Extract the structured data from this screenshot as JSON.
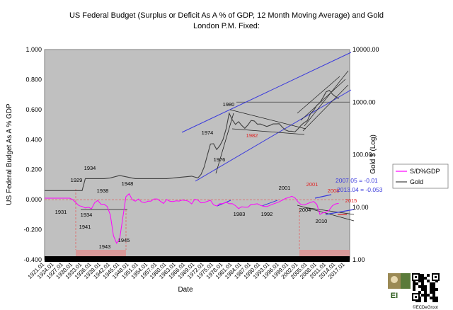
{
  "chart_data": {
    "type": "line",
    "title_line1": "US Federal Budget (Surplus or Deficit As A % of GDP, 12 Month Moving Average) and Gold",
    "title_line2": "London P.M. Fixed:",
    "xlabel": "Date",
    "ylabel_left": "US Federal Budget As A % GDP",
    "ylabel_right": "Gold $ (Log)",
    "y_left_ticks": [
      "1.000",
      "0.800",
      "0.600",
      "0.400",
      "0.200",
      "0.000",
      "-0.200",
      "-0.400"
    ],
    "y_left_range": [
      -0.4,
      1.0
    ],
    "y_right_ticks": [
      "10000.00",
      "1000.00",
      "100.00",
      "10.00",
      "1.00"
    ],
    "y_right_range": [
      1,
      10000
    ],
    "x_tick_labels": [
      "1921.01",
      "1924.01",
      "1927.01",
      "1930.01",
      "1933.01",
      "1936.01",
      "1939.01",
      "1942.01",
      "1945.01",
      "1948.01",
      "1951.01",
      "1954.01",
      "1957.01",
      "1960.01",
      "1963.01",
      "1966.01",
      "1969.01",
      "1972.01",
      "1975.01",
      "1978.01",
      "1981.01",
      "1984.01",
      "1987.01",
      "1990.01",
      "1993.01",
      "1996.01",
      "1999.01",
      "2002.01",
      "2005.01",
      "2008.01",
      "2011.01",
      "2014.01",
      "2017.01"
    ],
    "legend": [
      "S/D%GDP",
      "Gold"
    ],
    "series": [
      {
        "name": "S/D%GDP",
        "color": "#ff00ff",
        "axis": "left",
        "points": [
          [
            1921,
            0.01
          ],
          [
            1925,
            0.01
          ],
          [
            1929,
            0.01
          ],
          [
            1930,
            0.0
          ],
          [
            1931,
            -0.02
          ],
          [
            1932,
            -0.04
          ],
          [
            1933,
            -0.045
          ],
          [
            1934,
            -0.055
          ],
          [
            1935,
            -0.05
          ],
          [
            1936,
            -0.06
          ],
          [
            1937,
            -0.02
          ],
          [
            1938,
            -0.005
          ],
          [
            1939,
            -0.03
          ],
          [
            1940,
            -0.03
          ],
          [
            1941,
            -0.045
          ],
          [
            1942,
            -0.1
          ],
          [
            1943,
            -0.24
          ],
          [
            1944,
            -0.29
          ],
          [
            1945,
            -0.26
          ],
          [
            1946,
            -0.12
          ],
          [
            1947,
            0.02
          ],
          [
            1948,
            0.04
          ],
          [
            1949,
            0.0
          ],
          [
            1950,
            -0.01
          ],
          [
            1951,
            0.005
          ],
          [
            1952,
            -0.015
          ],
          [
            1953,
            -0.02
          ],
          [
            1954,
            -0.01
          ],
          [
            1955,
            -0.01
          ],
          [
            1956,
            0.005
          ],
          [
            1957,
            0.005
          ],
          [
            1958,
            -0.01
          ],
          [
            1959,
            -0.025
          ],
          [
            1960,
            0.001
          ],
          [
            1961,
            -0.01
          ],
          [
            1962,
            -0.013
          ],
          [
            1963,
            -0.008
          ],
          [
            1964,
            -0.009
          ],
          [
            1965,
            -0.002
          ],
          [
            1966,
            -0.005
          ],
          [
            1967,
            -0.01
          ],
          [
            1968,
            -0.028
          ],
          [
            1969,
            0.003
          ],
          [
            1970,
            -0.003
          ],
          [
            1971,
            -0.021
          ],
          [
            1972,
            -0.019
          ],
          [
            1973,
            -0.011
          ],
          [
            1974,
            -0.004
          ],
          [
            1975,
            -0.034
          ],
          [
            1976,
            -0.042
          ],
          [
            1977,
            -0.026
          ],
          [
            1978,
            -0.026
          ],
          [
            1979,
            -0.016
          ],
          [
            1980,
            -0.027
          ],
          [
            1981,
            -0.026
          ],
          [
            1982,
            -0.04
          ],
          [
            1983,
            -0.059
          ],
          [
            1984,
            -0.047
          ],
          [
            1985,
            -0.05
          ],
          [
            1986,
            -0.05
          ],
          [
            1987,
            -0.031
          ],
          [
            1988,
            -0.03
          ],
          [
            1989,
            -0.027
          ],
          [
            1990,
            -0.038
          ],
          [
            1991,
            -0.044
          ],
          [
            1992,
            -0.046
          ],
          [
            1993,
            -0.038
          ],
          [
            1994,
            -0.029
          ],
          [
            1995,
            -0.022
          ],
          [
            1996,
            -0.014
          ],
          [
            1997,
            -0.003
          ],
          [
            1998,
            0.008
          ],
          [
            1999,
            0.014
          ],
          [
            2000,
            0.023
          ],
          [
            2001,
            0.013
          ],
          [
            2002,
            -0.015
          ],
          [
            2003,
            -0.033
          ],
          [
            2004,
            -0.035
          ],
          [
            2005,
            -0.026
          ],
          [
            2006,
            -0.018
          ],
          [
            2007,
            -0.012
          ],
          [
            2008,
            -0.031
          ],
          [
            2009,
            -0.098
          ],
          [
            2010,
            -0.087
          ],
          [
            2011,
            -0.084
          ],
          [
            2012,
            -0.068
          ],
          [
            2013,
            -0.04
          ],
          [
            2014,
            -0.028
          ],
          [
            2015,
            -0.025
          ]
        ]
      },
      {
        "name": "Gold",
        "color": "#404040",
        "axis": "right",
        "points": [
          [
            1921,
            20.67
          ],
          [
            1933,
            20.67
          ],
          [
            1934,
            35
          ],
          [
            1940,
            35
          ],
          [
            1942,
            36
          ],
          [
            1945,
            40
          ],
          [
            1950,
            35
          ],
          [
            1960,
            35
          ],
          [
            1968,
            39
          ],
          [
            1970,
            36
          ],
          [
            1971,
            42
          ],
          [
            1972,
            58
          ],
          [
            1973,
            97
          ],
          [
            1974,
            159
          ],
          [
            1975,
            161
          ],
          [
            1976,
            125
          ],
          [
            1977,
            148
          ],
          [
            1978,
            193
          ],
          [
            1979,
            307
          ],
          [
            1980,
            613
          ],
          [
            1981,
            460
          ],
          [
            1982,
            376
          ],
          [
            1983,
            424
          ],
          [
            1984,
            360
          ],
          [
            1985,
            317
          ],
          [
            1986,
            368
          ],
          [
            1987,
            447
          ],
          [
            1988,
            437
          ],
          [
            1989,
            381
          ],
          [
            1990,
            383
          ],
          [
            1991,
            362
          ],
          [
            1992,
            344
          ],
          [
            1993,
            360
          ],
          [
            1994,
            384
          ],
          [
            1995,
            384
          ],
          [
            1996,
            388
          ],
          [
            1997,
            331
          ],
          [
            1998,
            294
          ],
          [
            1999,
            279
          ],
          [
            2000,
            279
          ],
          [
            2001,
            271
          ],
          [
            2002,
            310
          ],
          [
            2003,
            363
          ],
          [
            2004,
            409
          ],
          [
            2005,
            445
          ],
          [
            2006,
            604
          ],
          [
            2007,
            696
          ],
          [
            2008,
            872
          ],
          [
            2009,
            972
          ],
          [
            2010,
            1225
          ],
          [
            2011,
            1572
          ],
          [
            2012,
            1669
          ],
          [
            2013,
            1411
          ],
          [
            2014,
            1266
          ],
          [
            2015,
            1160
          ]
        ]
      }
    ],
    "annotations": {
      "black": [
        "1980",
        "1974",
        "1976",
        "2001",
        "1934",
        "1929",
        "1938",
        "1948",
        "1931",
        "1934",
        "1941",
        "1943",
        "1945",
        "1983",
        "1992",
        "2004",
        "2010"
      ],
      "red": [
        "1982",
        "2001",
        "2008",
        "2015"
      ],
      "blue": [
        "2007.05 = -0.01",
        "2013.04 = -0.053"
      ]
    },
    "logo_text": "EI",
    "credit": "©ECDeGroot"
  }
}
